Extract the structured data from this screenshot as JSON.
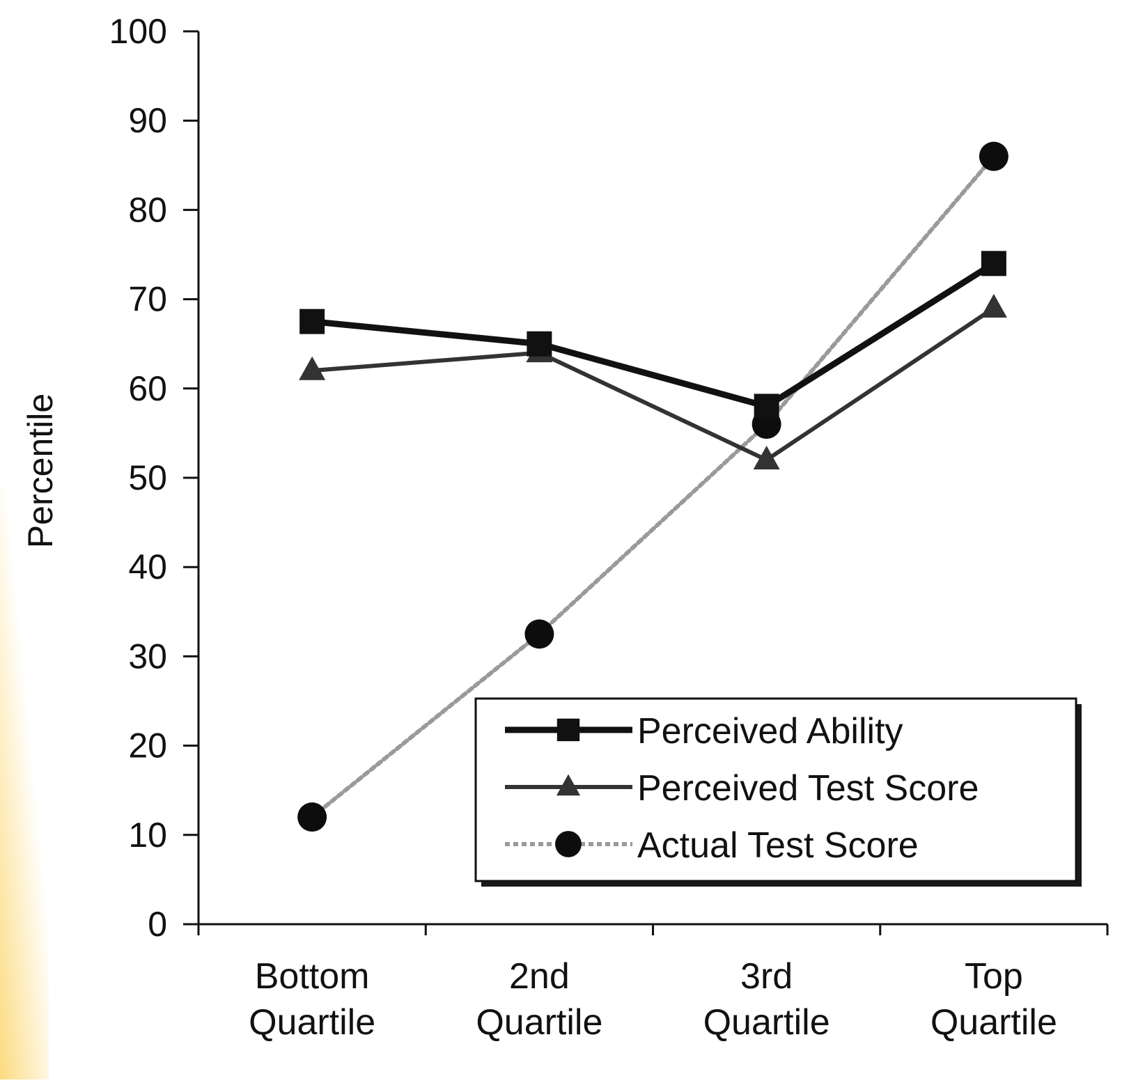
{
  "chart_data": {
    "type": "line",
    "title": "",
    "ylabel": "Percentile",
    "xlabel": "",
    "ylim": [
      0,
      100
    ],
    "yticks": [
      0,
      10,
      20,
      30,
      40,
      50,
      60,
      70,
      80,
      90,
      100
    ],
    "categories": [
      [
        "Bottom",
        "Quartile"
      ],
      [
        "2nd",
        "Quartile"
      ],
      [
        "3rd",
        "Quartile"
      ],
      [
        "Top",
        "Quartile"
      ]
    ],
    "series": [
      {
        "name": "Perceived Ability",
        "values": [
          67.5,
          65,
          58,
          74
        ],
        "marker": "square",
        "color": "#111111",
        "line_style": "solid-thick"
      },
      {
        "name": "Perceived Test Score",
        "values": [
          62,
          64,
          52,
          69
        ],
        "marker": "triangle",
        "color": "#333333",
        "line_style": "solid"
      },
      {
        "name": "Actual Test Score",
        "values": [
          12,
          32.5,
          56,
          86
        ],
        "marker": "circle",
        "color": "#9a9a9a",
        "line_style": "dashed"
      }
    ],
    "grid": false,
    "legend": {
      "placement": "lower-right"
    }
  }
}
